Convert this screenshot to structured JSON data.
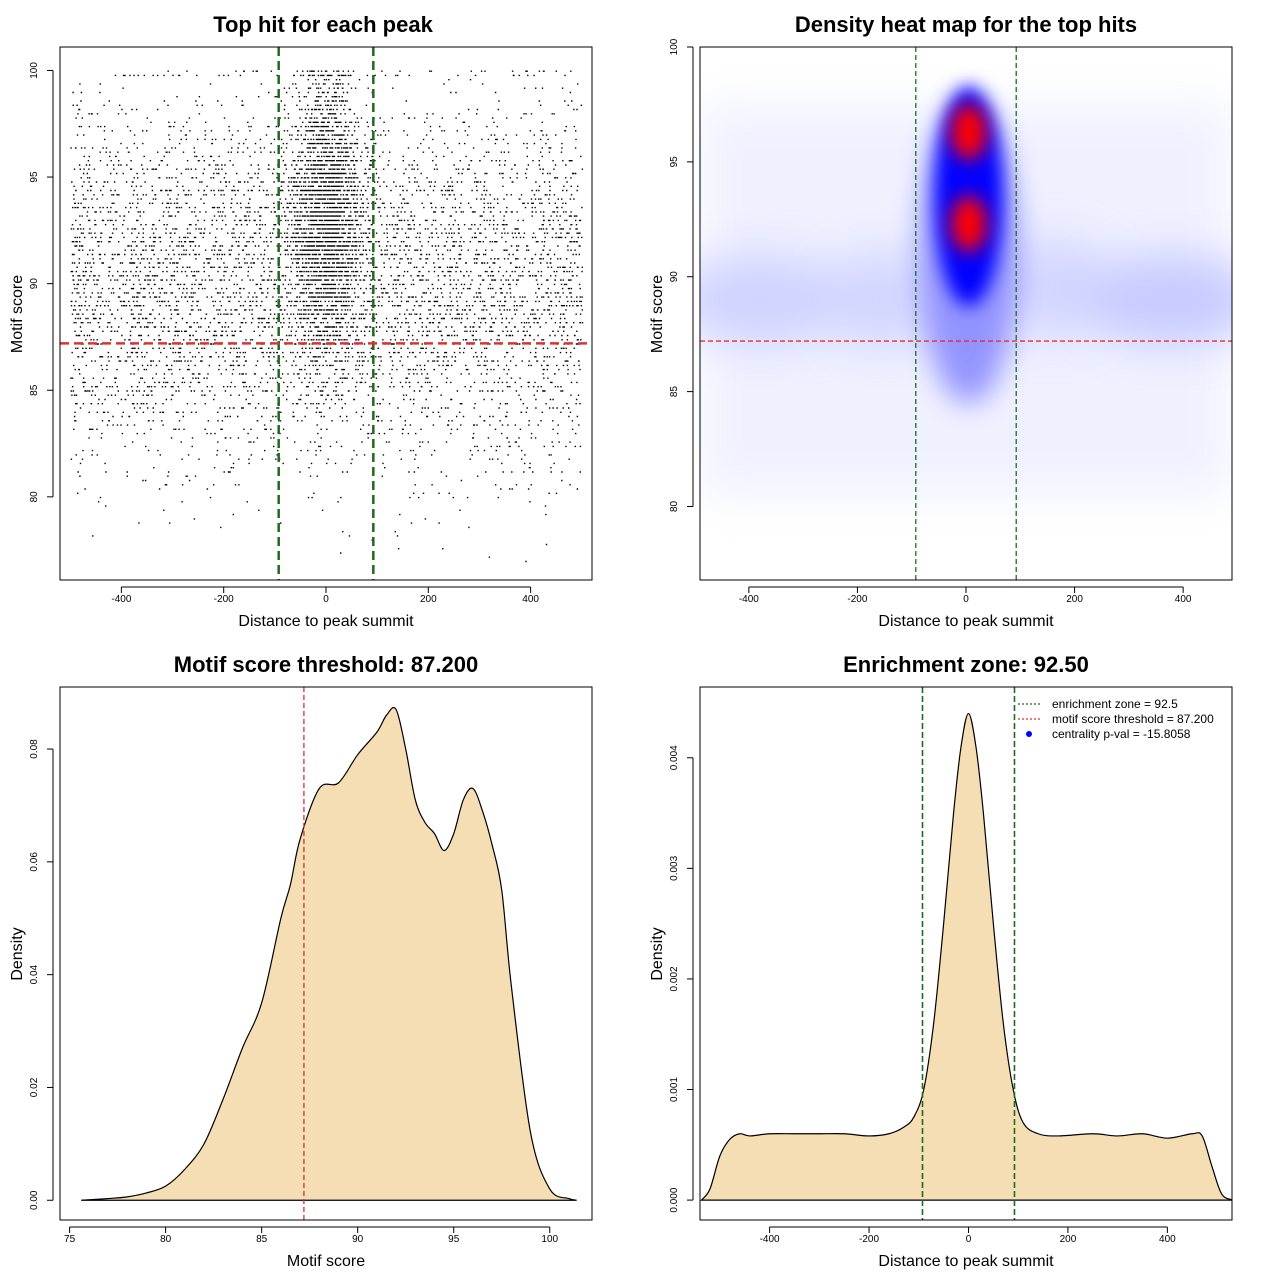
{
  "chart_data": [
    {
      "type": "scatter",
      "title": "Top hit for each peak",
      "xlabel": "Distance to peak summit",
      "ylabel": "Motif score",
      "xlim": [
        -520,
        520
      ],
      "ylim": [
        76.1,
        101.1
      ],
      "xticks": [
        -400,
        -200,
        0,
        200,
        400
      ],
      "yticks": [
        80,
        85,
        90,
        95,
        100
      ],
      "points_note": "",
      "x_range_points": [
        -500,
        500
      ],
      "hlines": [
        {
          "y": 87.2,
          "color": "#e03030",
          "style": "dashed"
        }
      ],
      "vlines": [
        {
          "x": -92.5,
          "color": "#1e6b1e",
          "style": "dashed"
        },
        {
          "x": 92.5,
          "color": "#1e6b1e",
          "style": "dashed"
        }
      ],
      "dense_center_x": 0
    },
    {
      "type": "heatmap",
      "title": "Density heat map for the top hits",
      "xlabel": "Distance to peak summit",
      "ylabel": "Motif score",
      "xlim": [
        -490,
        490
      ],
      "ylim": [
        76.8,
        100
      ],
      "xticks": [
        -400,
        -200,
        0,
        200,
        400
      ],
      "yticks": [
        80,
        85,
        90,
        95,
        100
      ],
      "hotspots": [
        {
          "x": 5,
          "y": 96.3,
          "intensity": "high"
        },
        {
          "x": 5,
          "y": 92.3,
          "intensity": "high"
        }
      ],
      "hlines": [
        {
          "y": 87.2,
          "color": "#e03030",
          "style": "dashed"
        }
      ],
      "vlines": [
        {
          "x": -92.5,
          "color": "#1e6b1e",
          "style": "dashed"
        },
        {
          "x": 92.5,
          "color": "#1e6b1e",
          "style": "dashed"
        }
      ],
      "colors": [
        "#ffffff",
        "#0000ff",
        "#ff0000"
      ]
    },
    {
      "type": "area",
      "title": "Motif score threshold: 87.200",
      "xlabel": "Motif score",
      "ylabel": "Density",
      "xlim": [
        74.5,
        102.2
      ],
      "ylim": [
        -0.0035,
        0.091
      ],
      "xticks": [
        75,
        80,
        85,
        90,
        95,
        100
      ],
      "yticks": [
        0.0,
        0.02,
        0.04,
        0.06,
        0.08
      ],
      "ytick_labels": [
        "0.00",
        "0.02",
        "0.04",
        "0.06",
        "0.08"
      ],
      "fill": "#f5deb3",
      "x": [
        75.6,
        77,
        78,
        79,
        80,
        81,
        82,
        83,
        84,
        85,
        86,
        86.5,
        87,
        88,
        89,
        90,
        91,
        91.5,
        92,
        92.5,
        93,
        93.5,
        94,
        94.5,
        95,
        95.5,
        96,
        96.5,
        97,
        97.5,
        98,
        99,
        100,
        101,
        101.4
      ],
      "y": [
        0.0,
        0.0003,
        0.0006,
        0.0013,
        0.0025,
        0.0055,
        0.01,
        0.018,
        0.027,
        0.035,
        0.05,
        0.056,
        0.064,
        0.073,
        0.074,
        0.079,
        0.083,
        0.086,
        0.087,
        0.08,
        0.071,
        0.067,
        0.065,
        0.062,
        0.065,
        0.071,
        0.073,
        0.069,
        0.063,
        0.055,
        0.038,
        0.012,
        0.002,
        0.0003,
        0.0
      ],
      "vlines": [
        {
          "x": 87.2,
          "color": "#d03030",
          "style": "dashed"
        }
      ]
    },
    {
      "type": "area",
      "title": "Enrichment zone: 92.50",
      "xlabel": "Distance to peak summit",
      "ylabel": "Density",
      "xlim": [
        -540,
        530
      ],
      "ylim": [
        -0.00018,
        0.00464
      ],
      "xticks": [
        -400,
        -200,
        0,
        200,
        400
      ],
      "yticks": [
        0.0,
        0.001,
        0.002,
        0.003,
        0.004
      ],
      "ytick_labels": [
        "0.000",
        "0.001",
        "0.002",
        "0.003",
        "0.004"
      ],
      "fill": "#f5deb3",
      "x": [
        -537,
        -520,
        -500,
        -480,
        -460,
        -440,
        -400,
        -350,
        -300,
        -250,
        -200,
        -160,
        -130,
        -110,
        -90,
        -70,
        -50,
        -30,
        -15,
        0,
        15,
        30,
        50,
        70,
        90,
        110,
        140,
        180,
        250,
        300,
        350,
        400,
        450,
        470,
        490,
        510,
        535
      ],
      "y": [
        0.0,
        0.0001,
        0.0004,
        0.00055,
        0.0006,
        0.00058,
        0.0006,
        0.0006,
        0.0006,
        0.0006,
        0.00058,
        0.0006,
        0.00066,
        0.00075,
        0.001,
        0.0016,
        0.0025,
        0.0035,
        0.0041,
        0.0044,
        0.0041,
        0.0035,
        0.0025,
        0.0016,
        0.001,
        0.0007,
        0.0006,
        0.00058,
        0.0006,
        0.00058,
        0.0006,
        0.00056,
        0.0006,
        0.00058,
        0.0003,
        5e-05,
        0.0
      ],
      "vlines": [
        {
          "x": -92.5,
          "color": "#1e6b1e",
          "style": "dashed"
        },
        {
          "x": 92.5,
          "color": "#1e6b1e",
          "style": "dashed"
        }
      ],
      "legend": {
        "position": "top-right",
        "entries": [
          {
            "label": "enrichment zone = 92.5",
            "color": "#1e6b1e",
            "kind": "dotted-line"
          },
          {
            "label": "motif score threshold = 87.200",
            "color": "#e03030",
            "kind": "dotted-line"
          },
          {
            "label": "centrality p-val = -15.8058",
            "color": "#0000ff",
            "kind": "point"
          }
        ]
      }
    }
  ]
}
